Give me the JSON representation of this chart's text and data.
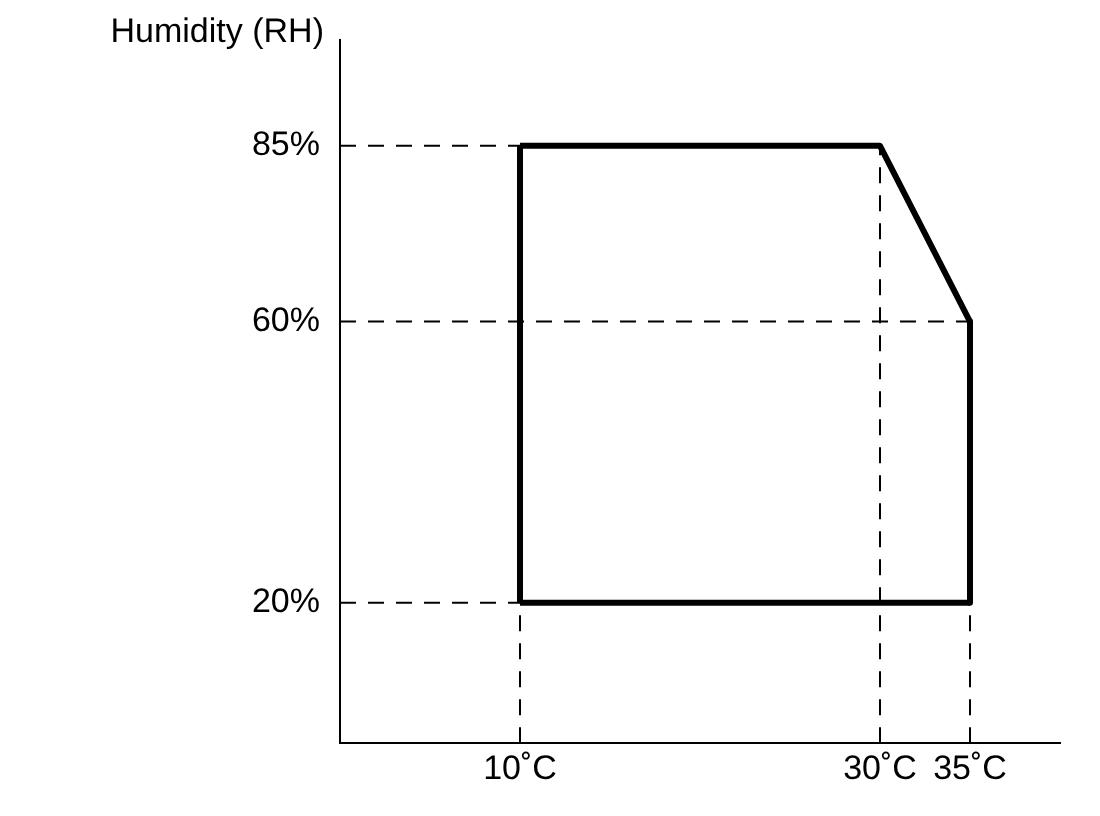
{
  "chart_data": {
    "type": "line",
    "ylabel": "Humidity (RH)",
    "series": [
      {
        "color": "#000000",
        "x": [
          10,
          30,
          35
        ],
        "values": [
          85,
          85,
          60
        ]
      },
      {
        "color": "#000000",
        "x": [
          35,
          35
        ],
        "values": [
          60,
          20
        ]
      },
      {
        "color": "#000000",
        "x": [
          35,
          10
        ],
        "values": [
          20,
          20
        ]
      },
      {
        "color": "#000000",
        "x": [
          10,
          10
        ],
        "values": [
          20,
          85
        ]
      }
    ],
    "xlim": [
      0,
      40
    ],
    "ylim": [
      0,
      100
    ],
    "xticks": [
      {
        "value": 10,
        "label": "10˚C"
      },
      {
        "value": 30,
        "label": "30˚C"
      },
      {
        "value": 35,
        "label": "35˚C"
      }
    ],
    "yticks": [
      {
        "value": 20,
        "label": "20%"
      },
      {
        "value": 60,
        "label": "60%"
      },
      {
        "value": 85,
        "label": "85%"
      }
    ],
    "ref_lines": [
      {
        "axis": "y",
        "value": 85,
        "line_style": "dashed"
      },
      {
        "axis": "y",
        "value": 60,
        "line_style": "dashed"
      },
      {
        "axis": "y",
        "value": 20,
        "line_style": "dashed"
      },
      {
        "axis": "x",
        "value": 10,
        "line_style": "dashed"
      },
      {
        "axis": "x",
        "value": 30,
        "line_style": "dashed"
      },
      {
        "axis": "x",
        "value": 35,
        "line_style": "dashed"
      }
    ],
    "grid": false,
    "legend": false,
    "marker": "none",
    "line_style": "solid"
  }
}
